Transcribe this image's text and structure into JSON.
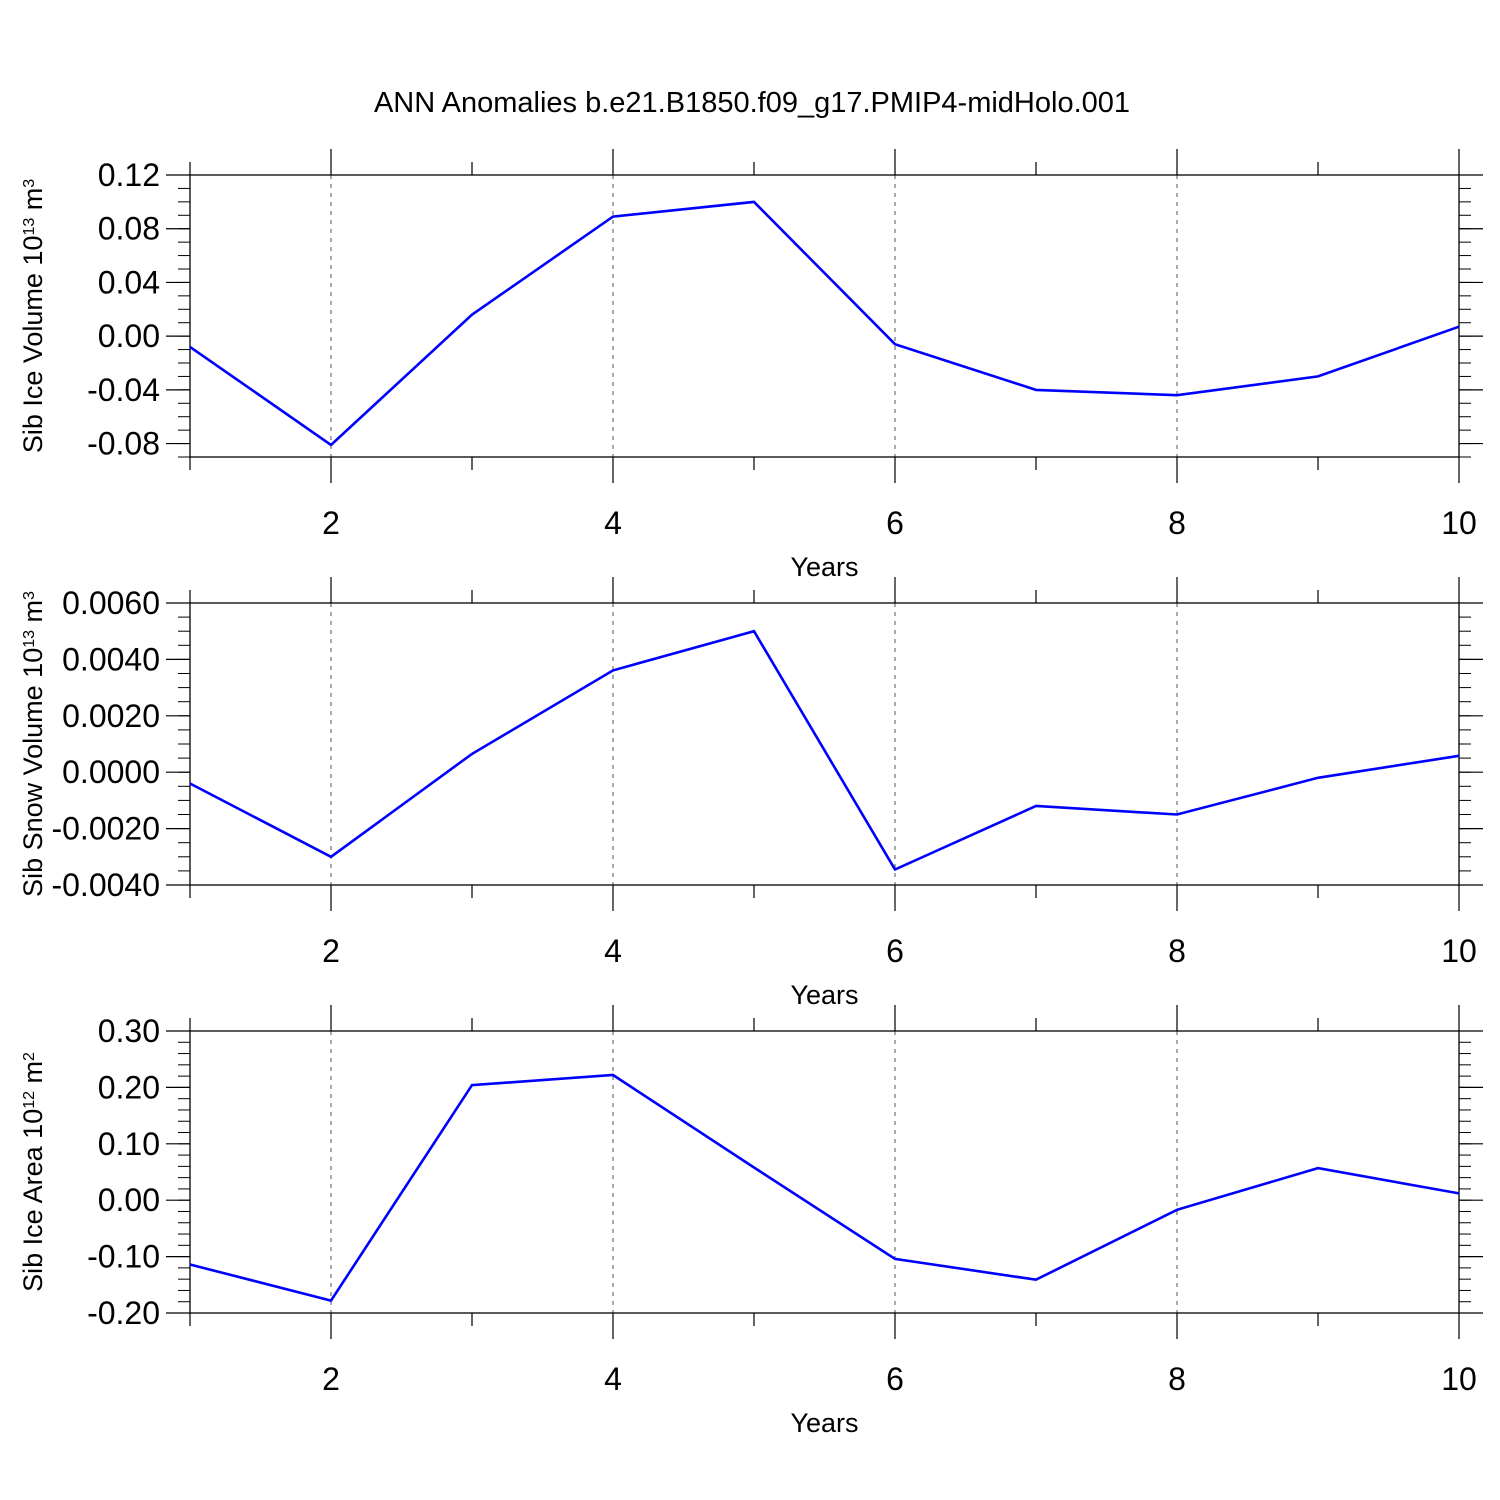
{
  "title": "ANN Anomalies b.e21.B1850.f09_g17.PMIP4-midHolo.001",
  "chart_data": [
    {
      "type": "line",
      "title": "ANN Anomalies b.e21.B1850.f09_g17.PMIP4-midHolo.001",
      "ylabel": {
        "text": "Sib Ice Volume 10",
        "exp": "13",
        "unit": "m",
        "unit_exp": "3"
      },
      "xlabel": "Years",
      "xlim": [
        1,
        10
      ],
      "ylim": [
        -0.09,
        0.12
      ],
      "xticks": [
        2,
        4,
        6,
        8,
        10
      ],
      "xtick_labels": [
        "2",
        "4",
        "6",
        "8",
        "10"
      ],
      "yticks": [
        0.12,
        0.08,
        0.04,
        0.0,
        -0.04,
        -0.08
      ],
      "ytick_labels": [
        "0.12",
        "0.08",
        "0.04",
        "0.00",
        "-0.04",
        "-0.08"
      ],
      "yminor_step": 0.01,
      "grid": "dashed vertical at major x ticks",
      "line_color": "#0000ff",
      "series": [
        {
          "x": [
            1,
            2,
            3,
            4,
            5,
            6,
            7,
            8,
            9,
            10
          ],
          "values": [
            -0.008,
            -0.081,
            0.016,
            0.089,
            0.1,
            -0.006,
            -0.04,
            -0.044,
            -0.03,
            0.007
          ]
        }
      ]
    },
    {
      "type": "line",
      "ylabel": {
        "text": "Sib Snow Volume 10",
        "exp": "13",
        "unit": "m",
        "unit_exp": "3"
      },
      "xlabel": "Years",
      "xlim": [
        1,
        10
      ],
      "ylim": [
        -0.004,
        0.006
      ],
      "xticks": [
        2,
        4,
        6,
        8,
        10
      ],
      "xtick_labels": [
        "2",
        "4",
        "6",
        "8",
        "10"
      ],
      "yticks": [
        0.006,
        0.004,
        0.002,
        0.0,
        -0.002,
        -0.004
      ],
      "ytick_labels": [
        "0.0060",
        "0.0040",
        "0.0020",
        "0.0000",
        "-0.0020",
        "-0.0040"
      ],
      "yminor_step": 0.0005,
      "grid": "dashed vertical at major x ticks",
      "line_color": "#0000ff",
      "series": [
        {
          "x": [
            1,
            2,
            3,
            4,
            5,
            6,
            7,
            8,
            9,
            10
          ],
          "values": [
            -0.0004,
            -0.003,
            0.00065,
            0.00361,
            0.005,
            -0.00345,
            -0.0012,
            -0.0015,
            -0.0002,
            0.00058
          ]
        }
      ]
    },
    {
      "type": "line",
      "ylabel": {
        "text": "Sib Ice Area 10",
        "exp": "12",
        "unit": "m",
        "unit_exp": "2"
      },
      "xlabel": "Years",
      "xlim": [
        1,
        10
      ],
      "ylim": [
        -0.2,
        0.3
      ],
      "xticks": [
        2,
        4,
        6,
        8,
        10
      ],
      "xtick_labels": [
        "2",
        "4",
        "6",
        "8",
        "10"
      ],
      "yticks": [
        0.3,
        0.2,
        0.1,
        0.0,
        -0.1,
        -0.2
      ],
      "ytick_labels": [
        "0.30",
        "0.20",
        "0.10",
        "0.00",
        "-0.10",
        "-0.20"
      ],
      "yminor_step": 0.02,
      "grid": "dashed vertical at major x ticks",
      "line_color": "#0000ff",
      "series": [
        {
          "x": [
            1,
            2,
            3,
            4,
            5,
            6,
            7,
            8,
            9,
            10
          ],
          "values": [
            -0.114,
            -0.178,
            0.204,
            0.222,
            0.058,
            -0.104,
            -0.141,
            -0.017,
            0.057,
            0.012
          ]
        }
      ]
    }
  ]
}
